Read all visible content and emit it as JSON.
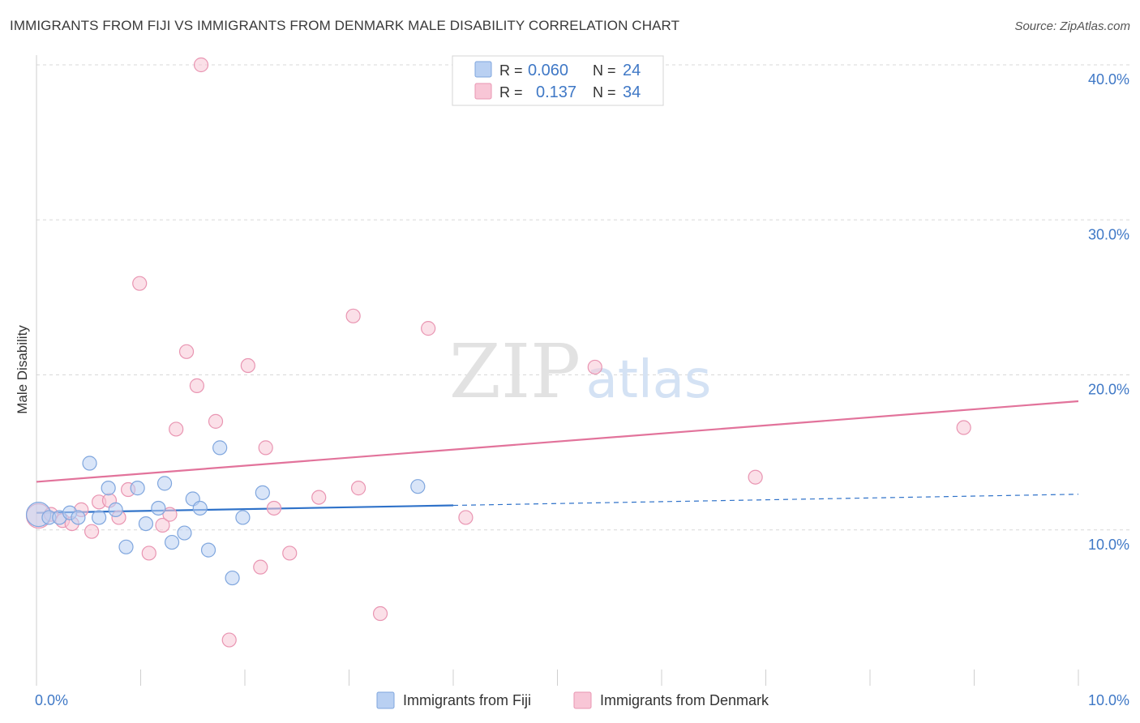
{
  "title": "IMMIGRANTS FROM FIJI VS IMMIGRANTS FROM DENMARK MALE DISABILITY CORRELATION CHART",
  "source": "Source: ZipAtlas.com",
  "watermark": {
    "zip": "ZIP",
    "atlas": "atlas"
  },
  "colors": {
    "fiji_fill": "#b9d0f2",
    "fiji_stroke": "#7fa6de",
    "fiji_line": "#2f72c9",
    "denmark_fill": "#f8c6d6",
    "denmark_stroke": "#e995b2",
    "denmark_line": "#e2739b",
    "axis_text": "#3f78c6",
    "grid": "#d8d8d8"
  },
  "legend": {
    "rows": [
      {
        "r_label": "R =",
        "r_value": "0.060",
        "n_label": "N =",
        "n_value": "24"
      },
      {
        "r_label": "R =",
        "r_value": "0.137",
        "n_label": "N =",
        "n_value": "34"
      }
    ]
  },
  "chart_data": {
    "type": "scatter",
    "title": "IMMIGRANTS FROM FIJI VS IMMIGRANTS FROM DENMARK MALE DISABILITY CORRELATION CHART",
    "xlabel": "",
    "ylabel": "Male Disability",
    "xlim": [
      0,
      10
    ],
    "ylim": [
      0,
      40
    ],
    "x_tick_labels": [
      "0.0%",
      "10.0%"
    ],
    "y_ticks": [
      10,
      20,
      30,
      40
    ],
    "y_tick_labels": [
      "10.0%",
      "20.0%",
      "30.0%",
      "40.0%"
    ],
    "grid": true,
    "series": [
      {
        "name": "Immigrants from Fiji",
        "r": 0.06,
        "n": 24,
        "trend": {
          "y_at_0": 11.1,
          "y_at_max": 12.3,
          "solid_until_x": 4.0
        },
        "points": [
          {
            "x": 0.02,
            "y": 11.0,
            "big": true
          },
          {
            "x": 0.12,
            "y": 10.8
          },
          {
            "x": 0.22,
            "y": 10.8
          },
          {
            "x": 0.32,
            "y": 11.1
          },
          {
            "x": 0.4,
            "y": 10.8
          },
          {
            "x": 0.51,
            "y": 14.3
          },
          {
            "x": 0.6,
            "y": 10.8
          },
          {
            "x": 0.69,
            "y": 12.7
          },
          {
            "x": 0.76,
            "y": 11.3
          },
          {
            "x": 0.86,
            "y": 8.9
          },
          {
            "x": 0.97,
            "y": 12.7
          },
          {
            "x": 1.05,
            "y": 10.4
          },
          {
            "x": 1.17,
            "y": 11.4
          },
          {
            "x": 1.23,
            "y": 13.0
          },
          {
            "x": 1.3,
            "y": 9.2
          },
          {
            "x": 1.42,
            "y": 9.8
          },
          {
            "x": 1.5,
            "y": 12.0
          },
          {
            "x": 1.57,
            "y": 11.4
          },
          {
            "x": 1.65,
            "y": 8.7
          },
          {
            "x": 1.76,
            "y": 15.3
          },
          {
            "x": 1.88,
            "y": 6.9
          },
          {
            "x": 1.98,
            "y": 10.8
          },
          {
            "x": 2.17,
            "y": 12.4
          },
          {
            "x": 3.66,
            "y": 12.8
          }
        ]
      },
      {
        "name": "Immigrants from Denmark",
        "r": 0.137,
        "n": 34,
        "trend": {
          "y_at_0": 13.1,
          "y_at_max": 18.3
        },
        "points": [
          {
            "x": 0.02,
            "y": 10.9,
            "big": true
          },
          {
            "x": 0.14,
            "y": 11.0
          },
          {
            "x": 0.25,
            "y": 10.6
          },
          {
            "x": 0.34,
            "y": 10.4
          },
          {
            "x": 0.43,
            "y": 11.3
          },
          {
            "x": 0.53,
            "y": 9.9
          },
          {
            "x": 0.6,
            "y": 11.8
          },
          {
            "x": 0.7,
            "y": 11.9
          },
          {
            "x": 0.79,
            "y": 10.8
          },
          {
            "x": 0.88,
            "y": 12.6
          },
          {
            "x": 0.99,
            "y": 25.9
          },
          {
            "x": 1.08,
            "y": 8.5
          },
          {
            "x": 1.21,
            "y": 10.3
          },
          {
            "x": 1.28,
            "y": 11.0
          },
          {
            "x": 1.34,
            "y": 16.5
          },
          {
            "x": 1.44,
            "y": 21.5
          },
          {
            "x": 1.54,
            "y": 19.3
          },
          {
            "x": 1.58,
            "y": 40.0
          },
          {
            "x": 1.72,
            "y": 17.0
          },
          {
            "x": 1.85,
            "y": 2.9
          },
          {
            "x": 2.03,
            "y": 20.6
          },
          {
            "x": 2.15,
            "y": 7.6
          },
          {
            "x": 2.2,
            "y": 15.3
          },
          {
            "x": 2.28,
            "y": 11.4
          },
          {
            "x": 2.43,
            "y": 8.5
          },
          {
            "x": 2.71,
            "y": 12.1
          },
          {
            "x": 3.04,
            "y": 23.8
          },
          {
            "x": 3.09,
            "y": 12.7
          },
          {
            "x": 3.3,
            "y": 4.6
          },
          {
            "x": 3.76,
            "y": 23.0
          },
          {
            "x": 4.12,
            "y": 10.8
          },
          {
            "x": 5.36,
            "y": 20.5
          },
          {
            "x": 6.9,
            "y": 13.4
          },
          {
            "x": 8.9,
            "y": 16.6
          }
        ]
      }
    ]
  }
}
